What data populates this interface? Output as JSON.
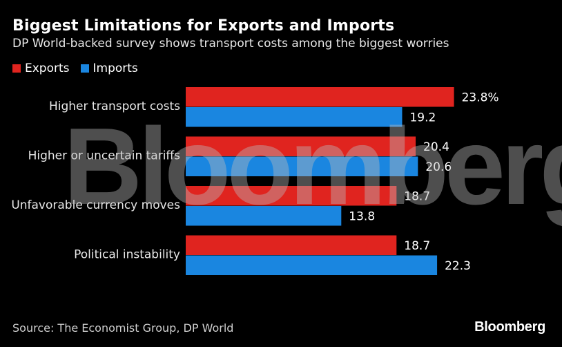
{
  "title": "Biggest Limitations for Exports and Imports",
  "subtitle": "DP World-backed survey shows transport costs among the biggest worries",
  "source": "Source: The Economist Group, DP World",
  "brand": "Bloomberg",
  "watermark": "Bloomberg",
  "colors": {
    "exports": "#e0241f",
    "imports": "#1a86e0",
    "background": "#000000"
  },
  "chart_data": {
    "type": "bar",
    "orientation": "horizontal",
    "title": "Biggest Limitations for Exports and Imports",
    "xlabel": "",
    "ylabel": "",
    "xlim": [
      0,
      24.5
    ],
    "grid": false,
    "legend_position": "top-left",
    "categories": [
      "Higher transport costs",
      "Higher or uncertain tariffs",
      "Unfavorable currency moves",
      "Political instability"
    ],
    "series": [
      {
        "name": "Exports",
        "values": [
          23.8,
          20.4,
          18.7,
          18.7
        ],
        "labels": [
          "23.8%",
          "20.4",
          "18.7",
          "18.7"
        ]
      },
      {
        "name": "Imports",
        "values": [
          19.2,
          20.6,
          13.8,
          22.3
        ],
        "labels": [
          "19.2",
          "20.6",
          "13.8",
          "22.3"
        ]
      }
    ]
  }
}
